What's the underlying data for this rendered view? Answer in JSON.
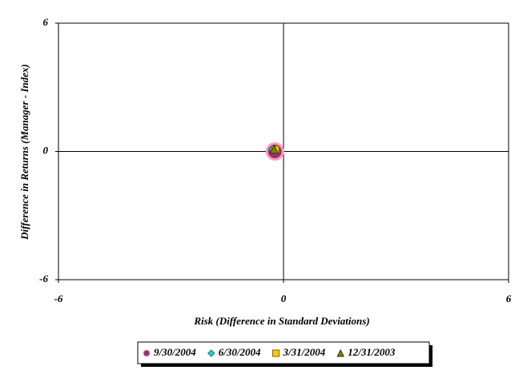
{
  "chart_data": {
    "type": "scatter",
    "x_label": "Risk (Difference in Standard Deviations)",
    "y_label": "Difference in Returns (Manager - Index)",
    "xlim": [
      -6,
      6
    ],
    "ylim": [
      -6,
      6
    ],
    "xticks": [
      -6,
      0,
      6
    ],
    "yticks": [
      -6,
      0,
      6
    ],
    "series": [
      {
        "name": "9/30/2004",
        "color": "#993366",
        "edge": "#ff99cc",
        "marker": "circle",
        "x": [
          -0.23
        ],
        "values": [
          0
        ]
      },
      {
        "name": "6/30/2004",
        "color": "#33cccc",
        "edge": "#008080",
        "marker": "diamond",
        "x": [
          -0.28
        ],
        "values": [
          0.1
        ]
      },
      {
        "name": "3/31/2004",
        "color": "#ffcc00",
        "edge": "#806000",
        "marker": "square",
        "x": [
          -0.22
        ],
        "values": [
          0.08
        ]
      },
      {
        "name": "12/31/2003",
        "color": "#808000",
        "edge": "#333300",
        "marker": "triangle",
        "x": [
          -0.25
        ],
        "values": [
          0.1
        ]
      }
    ]
  }
}
